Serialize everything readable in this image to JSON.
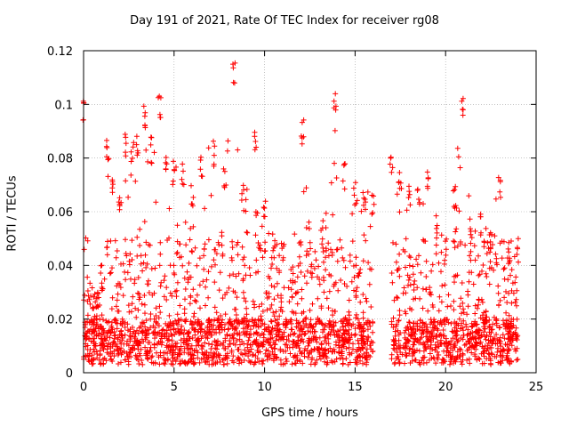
{
  "chart_data": {
    "type": "scatter",
    "title": "Day 191 of 2021, Rate Of TEC Index for receiver rg08",
    "xlabel": "GPS time / hours",
    "ylabel": "ROTI / TECUs",
    "xlim": [
      0,
      25
    ],
    "ylim": [
      0,
      0.12
    ],
    "xticks": [
      0,
      5,
      10,
      15,
      20,
      25
    ],
    "xtick_labels": [
      "0",
      "5",
      "10",
      "15",
      "20",
      "25"
    ],
    "yticks": [
      0,
      0.02,
      0.04,
      0.06,
      0.08,
      0.1,
      0.12
    ],
    "ytick_labels": [
      "0",
      "0.02",
      "0.04",
      "0.06",
      "0.08",
      "0.1",
      "0.12"
    ],
    "grid": true,
    "marker": "plus",
    "color": "#ff0000",
    "data_gap_hours": [
      16.0,
      17.0
    ],
    "envelope": [
      {
        "x": 0.0,
        "ymax": 0.103
      },
      {
        "x": 0.3,
        "ymax": 0.035
      },
      {
        "x": 0.7,
        "ymax": 0.03
      },
      {
        "x": 1.0,
        "ymax": 0.04
      },
      {
        "x": 1.3,
        "ymax": 0.088
      },
      {
        "x": 1.6,
        "ymax": 0.072
      },
      {
        "x": 2.0,
        "ymax": 0.068
      },
      {
        "x": 2.3,
        "ymax": 0.09
      },
      {
        "x": 2.7,
        "ymax": 0.088
      },
      {
        "x": 3.0,
        "ymax": 0.09
      },
      {
        "x": 3.4,
        "ymax": 0.1
      },
      {
        "x": 3.7,
        "ymax": 0.088
      },
      {
        "x": 4.2,
        "ymax": 0.105
      },
      {
        "x": 4.6,
        "ymax": 0.085
      },
      {
        "x": 5.0,
        "ymax": 0.08
      },
      {
        "x": 5.5,
        "ymax": 0.078
      },
      {
        "x": 6.0,
        "ymax": 0.07
      },
      {
        "x": 6.5,
        "ymax": 0.082
      },
      {
        "x": 7.2,
        "ymax": 0.087
      },
      {
        "x": 7.8,
        "ymax": 0.078
      },
      {
        "x": 8.3,
        "ymax": 0.117
      },
      {
        "x": 8.8,
        "ymax": 0.07
      },
      {
        "x": 9.5,
        "ymax": 0.09
      },
      {
        "x": 10.0,
        "ymax": 0.065
      },
      {
        "x": 10.5,
        "ymax": 0.055
      },
      {
        "x": 11.0,
        "ymax": 0.048
      },
      {
        "x": 11.5,
        "ymax": 0.04
      },
      {
        "x": 12.1,
        "ymax": 0.095
      },
      {
        "x": 12.6,
        "ymax": 0.045
      },
      {
        "x": 13.2,
        "ymax": 0.055
      },
      {
        "x": 13.9,
        "ymax": 0.106
      },
      {
        "x": 14.4,
        "ymax": 0.078
      },
      {
        "x": 15.0,
        "ymax": 0.072
      },
      {
        "x": 15.5,
        "ymax": 0.07
      },
      {
        "x": 16.0,
        "ymax": 0.068
      },
      {
        "x": 17.0,
        "ymax": 0.083
      },
      {
        "x": 17.5,
        "ymax": 0.075
      },
      {
        "x": 18.0,
        "ymax": 0.07
      },
      {
        "x": 18.5,
        "ymax": 0.07
      },
      {
        "x": 19.0,
        "ymax": 0.078
      },
      {
        "x": 19.5,
        "ymax": 0.06
      },
      {
        "x": 20.0,
        "ymax": 0.05
      },
      {
        "x": 20.5,
        "ymax": 0.07
      },
      {
        "x": 20.9,
        "ymax": 0.104
      },
      {
        "x": 21.4,
        "ymax": 0.06
      },
      {
        "x": 22.0,
        "ymax": 0.06
      },
      {
        "x": 22.5,
        "ymax": 0.055
      },
      {
        "x": 23.0,
        "ymax": 0.073
      },
      {
        "x": 23.5,
        "ymax": 0.05
      },
      {
        "x": 24.0,
        "ymax": 0.05
      }
    ]
  }
}
